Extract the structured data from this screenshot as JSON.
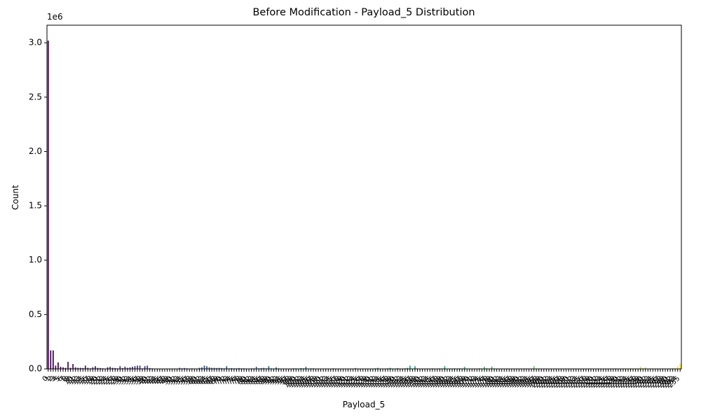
{
  "chart_data": {
    "type": "bar",
    "title": "Before Modification - Payload_5 Distribution",
    "x_label": "Payload_5",
    "y_label": "Count",
    "y_offset_label": "1e6",
    "colormap": "viridis",
    "categories": [
      0,
      1,
      2,
      3,
      4,
      5,
      6,
      7,
      8,
      9,
      10,
      11,
      12,
      13,
      14,
      15,
      16,
      17,
      18,
      19,
      20,
      21,
      22,
      23,
      24,
      25,
      26,
      27,
      28,
      29,
      30,
      31,
      32,
      33,
      34,
      35,
      36,
      37,
      38,
      39,
      40,
      41,
      42,
      43,
      44,
      45,
      46,
      47,
      48,
      49,
      50,
      51,
      52,
      53,
      54,
      55,
      56,
      57,
      58,
      59,
      60,
      61,
      62,
      63,
      64,
      65,
      66,
      67,
      68,
      69,
      70,
      71,
      72,
      73,
      74,
      75,
      76,
      77,
      78,
      79,
      80,
      81,
      82,
      83,
      84,
      85,
      86,
      87,
      88,
      89,
      90,
      91,
      92,
      93,
      94,
      95,
      96,
      97,
      98,
      99,
      100,
      101,
      102,
      103,
      104,
      105,
      106,
      107,
      108,
      109,
      110,
      111,
      112,
      113,
      114,
      115,
      116,
      117,
      118,
      119,
      120,
      121,
      122,
      123,
      124,
      125,
      126,
      127,
      128,
      129,
      130,
      131,
      132,
      133,
      134,
      135,
      136,
      137,
      138,
      139,
      140,
      141,
      142,
      143,
      144,
      145,
      146,
      147,
      148,
      149,
      150,
      151,
      152,
      153,
      154,
      155,
      156,
      157,
      158,
      159,
      160,
      161,
      162,
      163,
      164,
      165,
      166,
      167,
      168,
      169,
      170,
      171,
      172,
      173,
      174,
      175,
      176,
      177,
      178,
      179,
      180,
      181,
      182,
      183,
      184,
      185,
      186,
      187,
      188,
      189,
      190,
      191,
      192,
      193,
      194,
      195,
      196,
      197,
      198,
      199,
      200,
      201,
      202,
      203,
      204,
      205,
      206,
      207,
      208,
      209,
      210,
      211,
      212,
      213,
      214,
      215,
      216,
      217,
      218,
      219,
      220,
      221,
      222,
      223,
      224,
      225,
      226,
      227,
      228,
      229,
      230,
      231,
      232,
      233,
      234,
      235,
      236,
      237,
      238,
      239,
      240,
      241,
      242,
      243,
      244,
      245,
      246,
      247,
      248,
      249,
      250,
      251,
      252,
      253,
      254,
      255
    ],
    "values": [
      3020000,
      170000,
      170000,
      30000,
      60000,
      20000,
      15000,
      10000,
      65000,
      10000,
      45000,
      15000,
      10000,
      10000,
      8000,
      30000,
      10000,
      5000,
      15000,
      25000,
      10000,
      8000,
      5000,
      3000,
      15000,
      20000,
      10000,
      8000,
      5000,
      25000,
      8000,
      20000,
      10000,
      15000,
      20000,
      25000,
      30000,
      30000,
      5000,
      25000,
      30000,
      8000,
      5000,
      3000,
      3000,
      2000,
      2000,
      2000,
      2000,
      2000,
      2000,
      2000,
      3000,
      10000,
      5000,
      8000,
      5000,
      3000,
      5000,
      3000,
      2000,
      10000,
      15000,
      30000,
      25000,
      15000,
      10000,
      10000,
      8000,
      10000,
      8000,
      5000,
      25000,
      5000,
      8000,
      5000,
      5000,
      8000,
      5000,
      5000,
      3000,
      3000,
      5000,
      5000,
      20000,
      5000,
      8000,
      10000,
      5000,
      25000,
      5000,
      3000,
      15000,
      5000,
      3000,
      3000,
      2000,
      3000,
      3000,
      5000,
      5000,
      3000,
      8000,
      5000,
      20000,
      3000,
      5000,
      5000,
      3000,
      3000,
      2000,
      2000,
      3000,
      2000,
      2000,
      5000,
      2000,
      2000,
      3000,
      2000,
      2000,
      2000,
      3000,
      2000,
      8000,
      3000,
      2000,
      2000,
      2000,
      3000,
      2000,
      2000,
      5000,
      10000,
      3000,
      2000,
      2000,
      5000,
      10000,
      3000,
      3000,
      8000,
      2000,
      3000,
      5000,
      10000,
      30000,
      3000,
      25000,
      5000,
      3000,
      2000,
      2000,
      3000,
      2000,
      5000,
      3000,
      3000,
      5000,
      3000,
      25000,
      3000,
      2000,
      3000,
      5000,
      3000,
      5000,
      3000,
      20000,
      3000,
      2000,
      2000,
      3000,
      2000,
      5000,
      3000,
      20000,
      5000,
      3000,
      22000,
      5000,
      3000,
      2000,
      2000,
      2000,
      3000,
      2000,
      2000,
      2000,
      3000,
      2000,
      2000,
      2000,
      3000,
      2000,
      3000,
      25000,
      3000,
      2000,
      2000,
      2000,
      2000,
      3000,
      2000,
      2000,
      2000,
      3000,
      2000,
      2000,
      3000,
      2000,
      2000,
      2000,
      2000,
      3000,
      2000,
      2000,
      2000,
      2000,
      2000,
      2000,
      2000,
      2000,
      3000,
      2000,
      2000,
      3000,
      2000,
      2000,
      5000,
      3000,
      2000,
      2000,
      3000,
      2000,
      5000,
      3000,
      2000,
      3000,
      20000,
      3000,
      15000,
      3000,
      2000,
      2000,
      3000,
      2000,
      2000,
      2000,
      3000,
      2000,
      2000,
      5000,
      3000,
      25000,
      50000
    ],
    "ylim": [
      0,
      3162000
    ],
    "yticks": [
      {
        "value": 0,
        "label": "0.0"
      },
      {
        "value": 500000,
        "label": "0.5"
      },
      {
        "value": 1000000,
        "label": "1.0"
      },
      {
        "value": 1500000,
        "label": "1.5"
      },
      {
        "value": 2000000,
        "label": "2.0"
      },
      {
        "value": 2500000,
        "label": "2.5"
      },
      {
        "value": 3000000,
        "label": "3.0"
      }
    ],
    "grid": false
  }
}
